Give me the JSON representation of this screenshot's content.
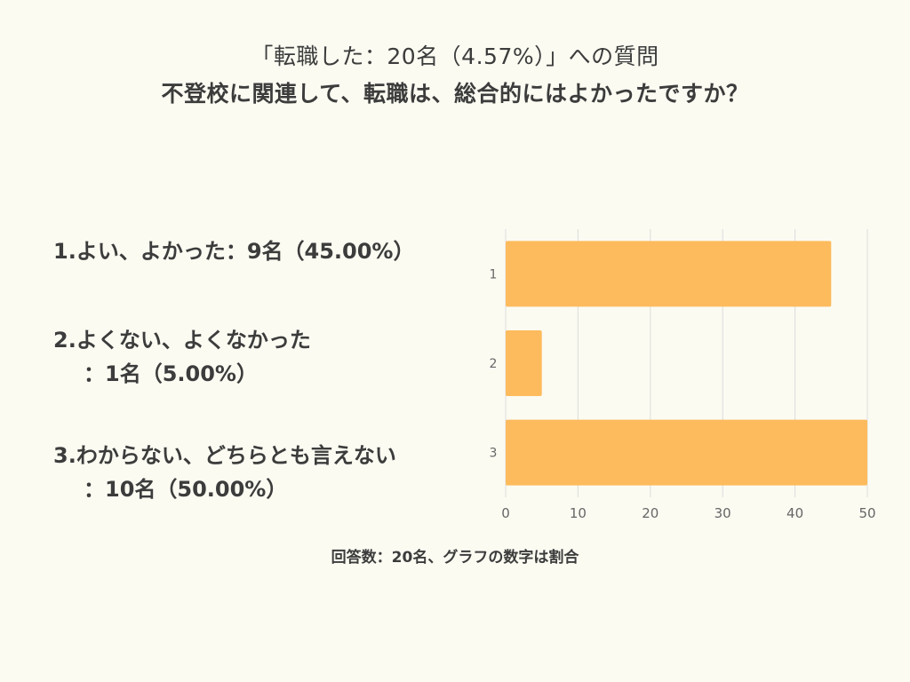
{
  "title": {
    "line1": "「転職した：20名（4.57%）」への質問",
    "line2": "不登校に関連して、転職は、総合的にはよかったですか？"
  },
  "labels": [
    {
      "line1": "1.よい、よかった：9名（45.00%）",
      "line2": ""
    },
    {
      "line1": "2.よくない、よくなかった",
      "line2": "：1名（5.00%）"
    },
    {
      "line1": "3.わからない、どちらとも言えない",
      "line2": "：10名（50.00%）"
    }
  ],
  "footnote": "回答数：20名、グラフの数字は割合",
  "chart_data": {
    "type": "bar",
    "orientation": "horizontal",
    "categories": [
      "1",
      "2",
      "3"
    ],
    "values": [
      45,
      5,
      50
    ],
    "xlim": [
      0,
      50
    ],
    "xticks": [
      0,
      10,
      20,
      30,
      40,
      50
    ],
    "grid": true,
    "bar_color": "#fdbb5d",
    "grid_color": "#dcdcdc"
  }
}
